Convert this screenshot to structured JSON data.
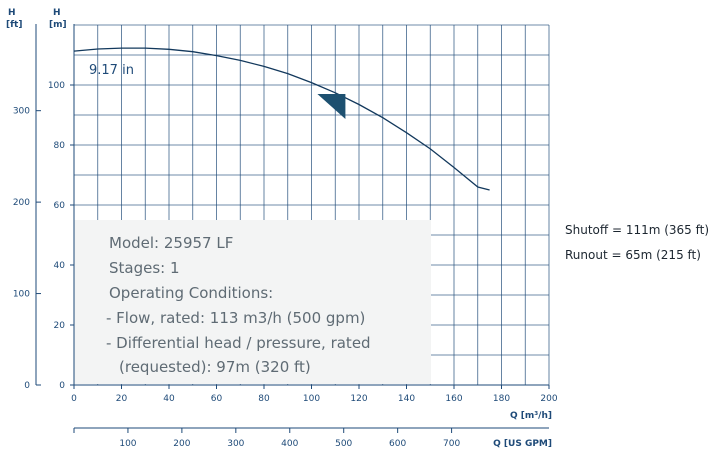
{
  "chart_data": {
    "type": "line",
    "title": "",
    "xlabel": "Q [m³/h]",
    "ylabel": "H [m]",
    "xlim": [
      0,
      200
    ],
    "ylim": [
      0,
      120
    ],
    "x_ticks": [
      "0",
      "20",
      "40",
      "60",
      "80",
      "100",
      "120",
      "140",
      "160",
      "180",
      "200"
    ],
    "y_ticks": [
      "0",
      "20",
      "40",
      "60",
      "80",
      "100"
    ],
    "grid": true,
    "series": [
      {
        "name": "9.17 in",
        "x": [
          0,
          10,
          20,
          30,
          40,
          50,
          60,
          70,
          80,
          90,
          100,
          110,
          120,
          130,
          140,
          150,
          160,
          170,
          175
        ],
        "y": [
          111.3,
          112.0,
          112.3,
          112.3,
          111.9,
          111.1,
          109.8,
          108.2,
          106.2,
          103.8,
          100.8,
          97.4,
          93.5,
          89.1,
          84.1,
          78.7,
          72.5,
          66.0,
          65.0
        ]
      }
    ],
    "rated_point": {
      "x": 113,
      "y": 97
    },
    "secondary_axes": {
      "left_ft": {
        "label": "H [ft]",
        "ticks": [
          "0",
          "100",
          "200",
          "300"
        ]
      },
      "bottom_gpm": {
        "label": "Q [US GPM]",
        "ticks": [
          "100",
          "200",
          "300",
          "400",
          "500",
          "600",
          "700"
        ]
      }
    }
  },
  "info_box": {
    "lines": [
      "Model: 25957 LF",
      "Stages: 1",
      "Operating Conditions:",
      "- Flow, rated: 113 m3/h (500 gpm)",
      "- Differential head / pressure, rated",
      "(requested): 97m (320 ft)"
    ]
  },
  "side_notes": {
    "shutoff": "Shutoff = 111m (365 ft)",
    "runout": "Runout = 65m (215 ft)"
  },
  "colors": {
    "axis": "#1e4a78",
    "grid": "#1e4a78",
    "curve": "#12385c",
    "marker": "#1d5070",
    "info_bg": "#f3f4f4"
  }
}
